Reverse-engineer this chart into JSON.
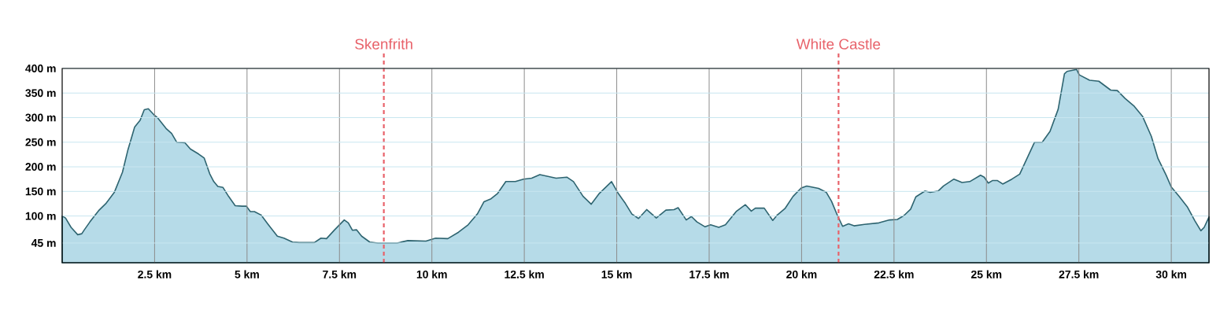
{
  "chart_data": {
    "type": "area",
    "x": [
      0,
      0.09,
      0.24,
      0.42,
      0.53,
      0.6,
      0.75,
      1.0,
      1.19,
      1.41,
      1.63,
      1.78,
      1.96,
      2.11,
      2.22,
      2.33,
      2.48,
      2.59,
      2.81,
      2.96,
      3.1,
      3.32,
      3.47,
      3.69,
      3.84,
      3.99,
      4.1,
      4.21,
      4.35,
      4.5,
      4.68,
      4.87,
      4.98,
      5.09,
      5.2,
      5.38,
      5.57,
      5.82,
      6.0,
      6.23,
      6.41,
      6.82,
      7.0,
      7.15,
      7.37,
      7.63,
      7.74,
      7.85,
      7.96,
      8.1,
      8.32,
      8.54,
      9.06,
      9.35,
      9.84,
      10.1,
      10.43,
      10.72,
      10.98,
      11.23,
      11.41,
      11.6,
      11.78,
      12.0,
      12.26,
      12.48,
      12.7,
      12.92,
      13.36,
      13.65,
      13.83,
      14.09,
      14.31,
      14.53,
      14.86,
      15.04,
      15.23,
      15.41,
      15.59,
      15.81,
      16.07,
      16.33,
      16.55,
      16.66,
      16.88,
      17.02,
      17.17,
      17.39,
      17.54,
      17.76,
      17.94,
      18.23,
      18.48,
      18.64,
      18.75,
      18.99,
      19.22,
      19.33,
      19.55,
      19.77,
      19.99,
      20.14,
      20.46,
      20.67,
      20.81,
      20.97,
      21.11,
      21.27,
      21.42,
      21.7,
      22.09,
      22.38,
      22.59,
      22.77,
      22.95,
      23.09,
      23.34,
      23.48,
      23.7,
      23.84,
      24.12,
      24.34,
      24.55,
      24.84,
      24.94,
      25.05,
      25.16,
      25.3,
      25.44,
      25.69,
      25.9,
      26.3,
      26.51,
      26.72,
      26.94,
      27.11,
      27.18,
      27.44,
      27.51,
      27.79,
      28.04,
      28.36,
      28.54,
      28.75,
      29.0,
      29.22,
      29.46,
      29.64,
      29.86,
      30.0,
      30.21,
      30.43,
      30.64,
      30.8,
      30.89,
      31.02
    ],
    "values": [
      100,
      96,
      77,
      62,
      64,
      72,
      88,
      112,
      126,
      148,
      189,
      235,
      281,
      295,
      316,
      318,
      306,
      299,
      278,
      268,
      250,
      249,
      236,
      226,
      218,
      186,
      170,
      160,
      158,
      140,
      121,
      120,
      120,
      109,
      109,
      102,
      83,
      59,
      55,
      47,
      46,
      46,
      55,
      54,
      72,
      92,
      86,
      71,
      72,
      59,
      47,
      45,
      45,
      50,
      49,
      55,
      54,
      67,
      82,
      104,
      129,
      135,
      146,
      170,
      170,
      175,
      177,
      184,
      177,
      179,
      170,
      140,
      124,
      146,
      170,
      146,
      126,
      104,
      95,
      113,
      96,
      112,
      113,
      117,
      92,
      99,
      88,
      78,
      82,
      77,
      82,
      109,
      123,
      110,
      116,
      116,
      91,
      101,
      115,
      140,
      157,
      161,
      156,
      148,
      130,
      101,
      79,
      84,
      80,
      83,
      86,
      92,
      93,
      101,
      114,
      139,
      151,
      148,
      151,
      161,
      175,
      168,
      170,
      183,
      179,
      167,
      172,
      172,
      165,
      175,
      185,
      250,
      250,
      272,
      317,
      389,
      394,
      398,
      387,
      376,
      374,
      356,
      355,
      339,
      323,
      303,
      262,
      217,
      183,
      159,
      140,
      119,
      90,
      70,
      77,
      98
    ],
    "color": "#b6dbe8",
    "xlim": [
      0,
      31.02
    ],
    "ylim": [
      5,
      400
    ],
    "xticks": [
      {
        "value": 2.5,
        "label": "2.5 km"
      },
      {
        "value": 5,
        "label": "5 km"
      },
      {
        "value": 7.5,
        "label": "7.5 km"
      },
      {
        "value": 10,
        "label": "10 km"
      },
      {
        "value": 12.5,
        "label": "12.5 km"
      },
      {
        "value": 15,
        "label": "15 km"
      },
      {
        "value": 17.5,
        "label": "17.5 km"
      },
      {
        "value": 20,
        "label": "20 km"
      },
      {
        "value": 22.5,
        "label": "22.5 km"
      },
      {
        "value": 25,
        "label": "25 km"
      },
      {
        "value": 27.5,
        "label": "27.5 km"
      },
      {
        "value": 30,
        "label": "30 km"
      }
    ],
    "yticks": [
      {
        "value": 45,
        "label": "45 m"
      },
      {
        "value": 100,
        "label": "100 m"
      },
      {
        "value": 150,
        "label": "150 m"
      },
      {
        "value": 200,
        "label": "200 m"
      },
      {
        "value": 250,
        "label": "250 m"
      },
      {
        "value": 300,
        "label": "300 m"
      },
      {
        "value": 350,
        "label": "350 m"
      },
      {
        "value": 400,
        "label": "400 m"
      }
    ],
    "grid": true,
    "ref_lines": [
      {
        "axis": "x",
        "value": 8.7,
        "label": "Skenfrith",
        "color": "#e8626a",
        "line_style": "dashed"
      },
      {
        "axis": "x",
        "value": 21.0,
        "label": "White Castle",
        "color": "#e8626a",
        "line_style": "dashed"
      }
    ]
  }
}
